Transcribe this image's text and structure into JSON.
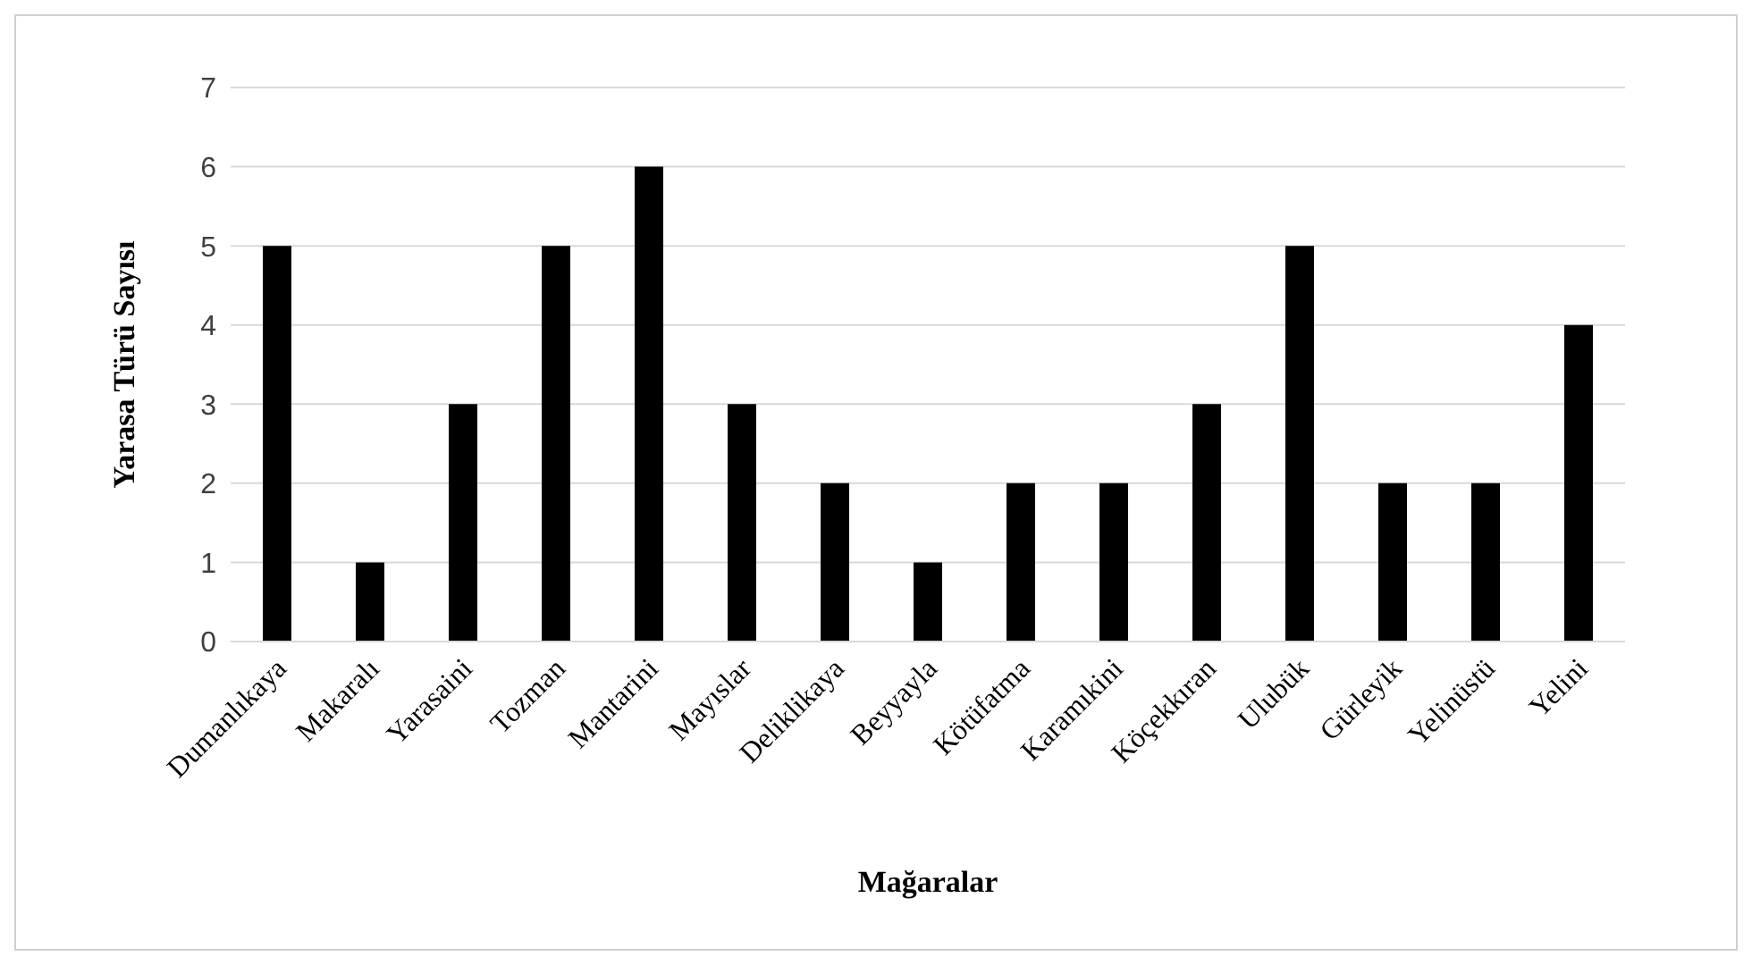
{
  "chart_data": {
    "type": "bar",
    "xlabel": "Mağaralar",
    "ylabel": "Yarasa Türü Sayısı",
    "categories": [
      "Dumanlıkaya",
      "Makaralı",
      "Yarasaini",
      "Tozman",
      "Mantarini",
      "Mayıslar",
      "Deliklikaya",
      "Beyyayla",
      "Kötüfatma",
      "Karamıkini",
      "Köçekkıran",
      "Ulubük",
      "Gürleyik",
      "Yelinüstü",
      "Yelini"
    ],
    "values": [
      5,
      1,
      3,
      5,
      6,
      3,
      2,
      1,
      2,
      2,
      3,
      5,
      2,
      2,
      4
    ],
    "color": "#000000",
    "ylim": [
      0,
      7
    ],
    "yticks": [
      0,
      1,
      2,
      3,
      4,
      5,
      6,
      7
    ],
    "grid": "y"
  }
}
